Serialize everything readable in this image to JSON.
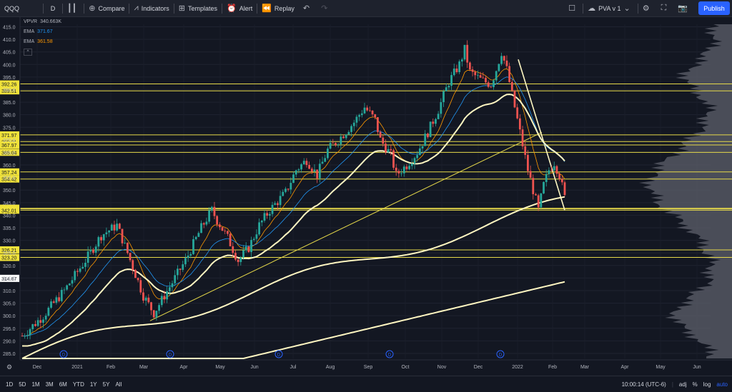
{
  "toolbar": {
    "symbol": "QQQ",
    "interval": "D",
    "compare": "Compare",
    "indicators": "Indicators",
    "templates": "Templates",
    "alert": "Alert",
    "replay": "Replay",
    "layout_name": "PVA v 1",
    "publish": "Publish"
  },
  "legend": {
    "vpvr_label": "VPVR",
    "vpvr_value": "340.663K",
    "ema1_label": "EMA",
    "ema1_value": "371.67",
    "ema1_color": "#2196f3",
    "ema2_label": "EMA",
    "ema2_value": "361.58",
    "ema2_color": "#ff9800"
  },
  "colors": {
    "background": "#131722",
    "up": "#26a69a",
    "down": "#ef5350",
    "level_line": "#e6d94a",
    "level_label_bg": "#f0e23a",
    "ma_white": "#fff7c2",
    "publish": "#2962ff"
  },
  "chart_data": {
    "type": "candlestick",
    "symbol": "QQQ",
    "interval": "D",
    "ylim": [
      283,
      416
    ],
    "y_ticks": [
      285,
      290,
      295,
      300,
      305,
      310,
      315,
      320,
      325,
      330,
      335,
      340,
      345,
      350,
      355,
      360,
      365,
      370,
      375,
      380,
      385,
      390,
      395,
      400,
      405,
      410,
      415
    ],
    "x_ticks": [
      "Dec",
      "2021",
      "Feb",
      "Mar",
      "Apr",
      "May",
      "Jun",
      "Jul",
      "Aug",
      "Sep",
      "Oct",
      "Nov",
      "Dec",
      "2022",
      "Feb",
      "Mar",
      "Apr",
      "May",
      "Jun"
    ],
    "horizontal_levels": [
      "392.26",
      "389.51",
      "371.97",
      "369.31",
      "367.97",
      "365.04",
      "357.24",
      "354.42",
      "342.80",
      "342.50",
      "342.01",
      "326.21",
      "323.20",
      "314.87"
    ],
    "price_path": [
      [
        0,
        292
      ],
      [
        8,
        300
      ],
      [
        16,
        310
      ],
      [
        24,
        322
      ],
      [
        30,
        332
      ],
      [
        36,
        336
      ],
      [
        40,
        325
      ],
      [
        46,
        308
      ],
      [
        50,
        301
      ],
      [
        54,
        308
      ],
      [
        58,
        315
      ],
      [
        62,
        322
      ],
      [
        68,
        335
      ],
      [
        72,
        342
      ],
      [
        74,
        338
      ],
      [
        78,
        331
      ],
      [
        82,
        322
      ],
      [
        86,
        327
      ],
      [
        90,
        336
      ],
      [
        94,
        342
      ],
      [
        100,
        349
      ],
      [
        104,
        358
      ],
      [
        108,
        362
      ],
      [
        112,
        356
      ],
      [
        116,
        366
      ],
      [
        120,
        370
      ],
      [
        126,
        377
      ],
      [
        130,
        383
      ],
      [
        134,
        378
      ],
      [
        136,
        370
      ],
      [
        140,
        364
      ],
      [
        142,
        356
      ],
      [
        146,
        360
      ],
      [
        150,
        365
      ],
      [
        154,
        373
      ],
      [
        158,
        382
      ],
      [
        162,
        393
      ],
      [
        166,
        400
      ],
      [
        168,
        406
      ],
      [
        170,
        397
      ],
      [
        174,
        394
      ],
      [
        178,
        392
      ],
      [
        180,
        398
      ],
      [
        182,
        405
      ],
      [
        184,
        398
      ],
      [
        186,
        388
      ],
      [
        188,
        378
      ],
      [
        190,
        368
      ],
      [
        192,
        358
      ],
      [
        194,
        350
      ],
      [
        196,
        342
      ],
      [
        198,
        352
      ],
      [
        200,
        358
      ],
      [
        202,
        361
      ],
      [
        204,
        356
      ],
      [
        206,
        347
      ]
    ],
    "ema_orange_value": "361.58",
    "ema_blue_value": "371.67",
    "volume_profile": "VPVR"
  },
  "bottombar": {
    "ranges": [
      "1D",
      "5D",
      "1M",
      "3M",
      "6M",
      "YTD",
      "1Y",
      "5Y",
      "All"
    ],
    "time": "10:00:14 (UTC-6)",
    "adj": "adj",
    "percent": "%",
    "log": "log",
    "auto": "auto"
  }
}
